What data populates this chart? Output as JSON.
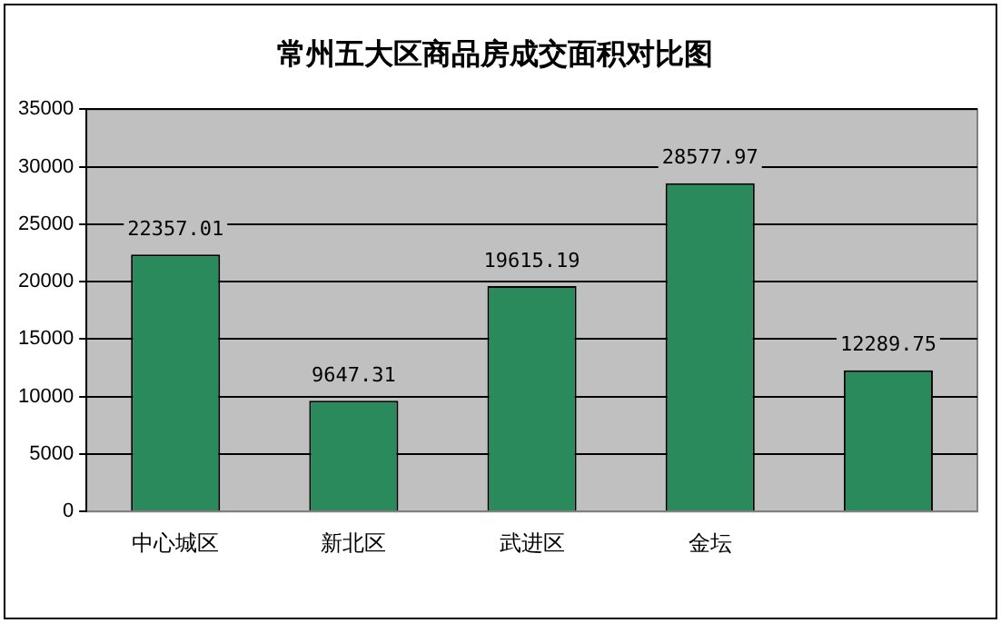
{
  "chart_data": {
    "type": "bar",
    "title": "常州五大区商品房成交面积对比图",
    "categories": [
      "中心城区",
      "新北区",
      "武进区",
      "金坛",
      null
    ],
    "values": [
      22357.01,
      9647.31,
      19615.19,
      28577.97,
      12289.75
    ],
    "color": "#2b8a5c",
    "ylim": [
      0,
      35000
    ],
    "yticks": [
      0,
      5000,
      10000,
      15000,
      20000,
      25000,
      30000,
      35000
    ],
    "grid": "y",
    "legend": false,
    "data_labels": true
  }
}
